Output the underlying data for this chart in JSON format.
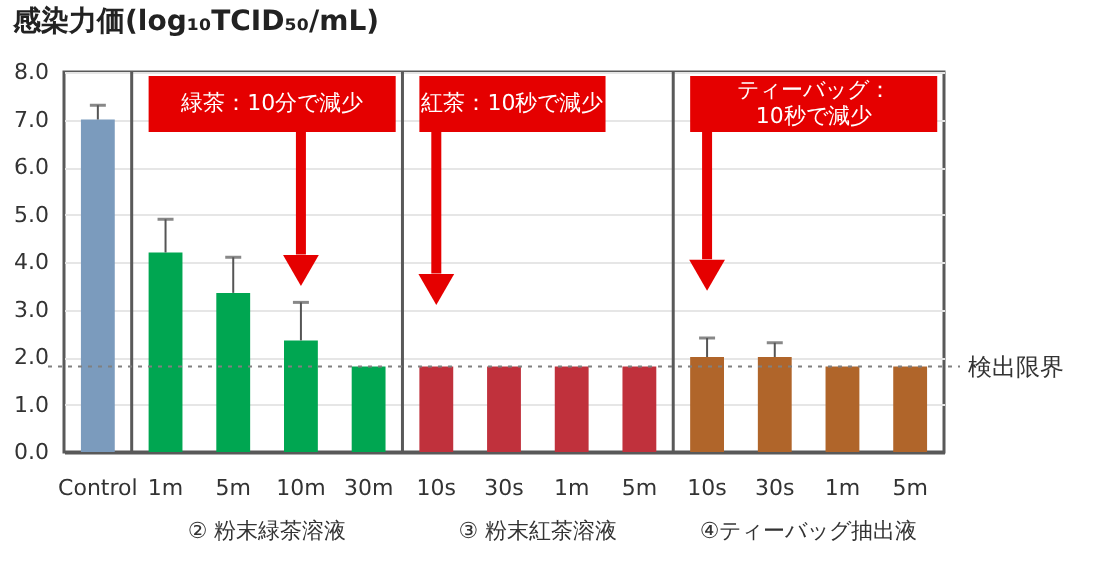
{
  "chart_data": {
    "type": "bar",
    "title": "感染力価(log₁₀TCID₅₀/mL)",
    "categories": [
      "Control",
      "1m",
      "5m",
      "10m",
      "30m",
      "10s",
      "30s",
      "1m",
      "5m",
      "10s",
      "30s",
      "1m",
      "5m"
    ],
    "values": [
      7.0,
      4.2,
      3.35,
      2.35,
      1.8,
      1.8,
      1.8,
      1.8,
      1.8,
      2.0,
      2.0,
      1.8,
      1.8
    ],
    "colors": [
      "#7b9bbd",
      "#00a651",
      "#00a651",
      "#00a651",
      "#00a651",
      "#c0313c",
      "#c0313c",
      "#c0313c",
      "#c0313c",
      "#b0652a",
      "#b0652a",
      "#b0652a",
      "#b0652a"
    ],
    "errors": [
      [
        7.0,
        7.3
      ],
      [
        4.2,
        4.9
      ],
      [
        3.35,
        4.1
      ],
      [
        2.35,
        3.15
      ],
      null,
      null,
      null,
      null,
      null,
      [
        2.0,
        2.4
      ],
      [
        2.0,
        2.3
      ],
      null,
      null
    ],
    "ylim": [
      0,
      8
    ],
    "yticks": [
      {
        "value": 0,
        "label": "0.0"
      },
      {
        "value": 1,
        "label": "1.0"
      },
      {
        "value": 2,
        "label": "2.0"
      },
      {
        "value": 3,
        "label": "3.0"
      },
      {
        "value": 4,
        "label": "4.0"
      },
      {
        "value": 5,
        "label": "5.0"
      },
      {
        "value": 6,
        "label": "6.0"
      },
      {
        "value": 7,
        "label": "7.0"
      },
      {
        "value": 8,
        "label": "8.0"
      }
    ],
    "grid": "y",
    "ref_lines": [
      {
        "axis": "y",
        "value": 1.8,
        "label": "検出限界",
        "line_style": "dotted",
        "color": "#808080"
      }
    ],
    "annotations": [
      "緑茶：10分で減少",
      "紅茶：10秒で減少",
      "ティーバッグ：\n10秒で減少",
      "② 粉末緑茶溶液",
      "③ 粉末紅茶溶液",
      "④ティーバッグ抽出液"
    ]
  }
}
